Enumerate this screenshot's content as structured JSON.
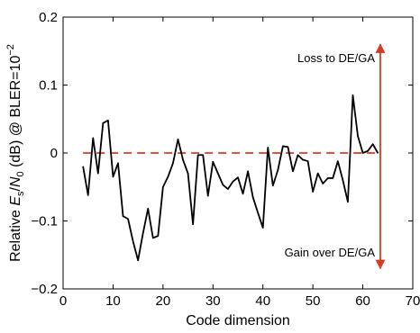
{
  "chart_data": {
    "type": "line",
    "xlabel": "Code dimension",
    "ylabel": {
      "prefix": "Relative ",
      "e": "E",
      "e_sub": "s",
      "slash": "/",
      "n": "N",
      "n_sub": "0",
      "suffix": " (dB) @ BLER=10",
      "sup": "−2"
    },
    "xlim": [
      0,
      70
    ],
    "ylim": [
      -0.2,
      0.2
    ],
    "xticks": [
      0,
      10,
      20,
      30,
      40,
      50,
      60,
      70
    ],
    "yticks": [
      -0.2,
      -0.1,
      0,
      0.1,
      0.2
    ],
    "xtick_labels": [
      "0",
      "10",
      "20",
      "30",
      "40",
      "50",
      "60",
      "70"
    ],
    "ytick_labels": [
      "−0.2",
      "−0.1",
      "0",
      "0.1",
      "0.2"
    ],
    "grid": false,
    "series": [
      {
        "color": "#000000",
        "x": [
          4,
          5,
          6,
          7,
          8,
          9,
          10,
          11,
          12,
          13,
          14,
          15,
          16,
          17,
          18,
          19,
          20,
          21,
          22,
          23,
          24,
          25,
          26,
          27,
          28,
          29,
          30,
          31,
          32,
          33,
          34,
          35,
          36,
          37,
          38,
          39,
          40,
          41,
          42,
          43,
          44,
          45,
          46,
          47,
          48,
          49,
          50,
          51,
          52,
          53,
          54,
          55,
          56,
          57,
          58,
          59,
          60,
          61,
          62,
          63
        ],
        "y": [
          -0.02,
          -0.062,
          0.022,
          -0.03,
          0.044,
          0.048,
          -0.035,
          -0.015,
          -0.093,
          -0.097,
          -0.13,
          -0.158,
          -0.118,
          -0.082,
          -0.125,
          -0.122,
          -0.05,
          -0.035,
          -0.015,
          0.02,
          -0.01,
          -0.03,
          -0.105,
          -0.003,
          -0.003,
          -0.063,
          -0.013,
          -0.03,
          -0.047,
          -0.053,
          -0.042,
          -0.036,
          -0.06,
          -0.027,
          -0.065,
          -0.088,
          -0.11,
          0.008,
          -0.048,
          -0.025,
          0.01,
          0.009,
          -0.027,
          -0.003,
          -0.01,
          -0.012,
          -0.057,
          -0.03,
          -0.045,
          -0.037,
          -0.037,
          -0.012,
          -0.04,
          -0.072,
          0.085,
          0.025,
          0.0,
          0.003,
          0.013,
          0.0
        ]
      }
    ],
    "reference": {
      "y": 0,
      "x_range": [
        4,
        63
      ],
      "style": "dashed",
      "color": "#d93a26"
    },
    "range_arrow": {
      "x": 63.5,
      "y_range": [
        -0.17,
        0.16
      ],
      "color": "#d93a26"
    },
    "annotations": {
      "loss": "Loss to DE/GA",
      "gain": "Gain over DE/GA"
    }
  }
}
